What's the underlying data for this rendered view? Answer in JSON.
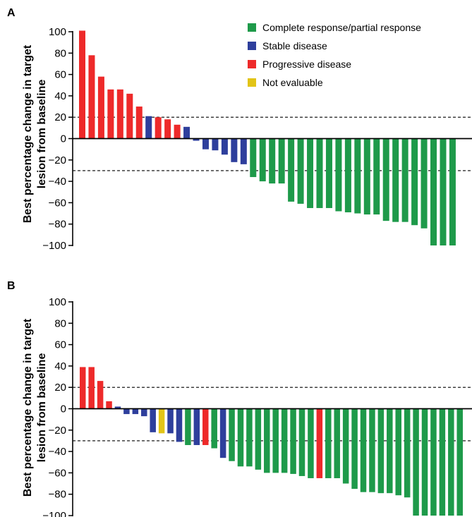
{
  "chart_data": [
    {
      "panel": "A",
      "type": "bar",
      "ylabel_line1": "Best percentage change in target",
      "ylabel_line2": "lesion from baseline",
      "ylim": [
        -100,
        100
      ],
      "yticks": [
        100,
        80,
        60,
        40,
        20,
        0,
        -20,
        -40,
        -60,
        -80,
        -100
      ],
      "reference_lines": [
        20,
        -30
      ],
      "legend": [
        {
          "label": "Complete response/partial response",
          "color": "#1e9a4a"
        },
        {
          "label": "Stable disease",
          "color": "#2e3f9c"
        },
        {
          "label": "Progressive disease",
          "color": "#ee2a2a"
        },
        {
          "label": "Not evaluable",
          "color": "#e2c417"
        }
      ],
      "values": [
        101,
        78,
        58,
        46,
        46,
        42,
        30,
        21,
        20,
        18,
        13,
        11,
        -2,
        -10,
        -11,
        -15,
        -22,
        -24,
        -36,
        -40,
        -42,
        -42,
        -59,
        -61,
        -65,
        -65,
        -65,
        -68,
        -69,
        -70,
        -71,
        -71,
        -77,
        -78,
        -78,
        -81,
        -84,
        -100,
        -100,
        -100
      ],
      "categories": [
        "PD",
        "PD",
        "PD",
        "PD",
        "PD",
        "PD",
        "PD",
        "SD",
        "PD",
        "PD",
        "PD",
        "SD",
        "SD",
        "SD",
        "SD",
        "SD",
        "SD",
        "SD",
        "CR",
        "CR",
        "CR",
        "CR",
        "CR",
        "CR",
        "CR",
        "CR",
        "CR",
        "CR",
        "CR",
        "CR",
        "CR",
        "CR",
        "CR",
        "CR",
        "CR",
        "CR",
        "CR",
        "CR",
        "CR",
        "CR"
      ]
    },
    {
      "panel": "B",
      "type": "bar",
      "ylabel_line1": "Best percentage change in target",
      "ylabel_line2": "lesion from baseline",
      "ylim": [
        -100,
        100
      ],
      "yticks": [
        100,
        80,
        60,
        40,
        20,
        0,
        -20,
        -40,
        -60,
        -80,
        -100
      ],
      "reference_lines": [
        20,
        -30
      ],
      "values": [
        39,
        39,
        26,
        7,
        2,
        -5,
        -5,
        -7,
        -22,
        -23,
        -23,
        -31,
        -34,
        -34,
        -34,
        -37,
        -46,
        -49,
        -54,
        -54,
        -57,
        -60,
        -60,
        -60,
        -61,
        -63,
        -65,
        -65,
        -65,
        -65,
        -70,
        -75,
        -78,
        -78,
        -79,
        -79,
        -81,
        -83,
        -100,
        -100,
        -100,
        -100,
        -100,
        -100
      ],
      "categories": [
        "PD",
        "PD",
        "PD",
        "PD",
        "SD",
        "SD",
        "SD",
        "SD",
        "SD",
        "NE",
        "SD",
        "SD",
        "CR",
        "SD",
        "PD",
        "CR",
        "SD",
        "CR",
        "CR",
        "CR",
        "CR",
        "CR",
        "CR",
        "CR",
        "CR",
        "CR",
        "CR",
        "PD",
        "CR",
        "CR",
        "CR",
        "CR",
        "CR",
        "CR",
        "CR",
        "CR",
        "CR",
        "CR",
        "CR",
        "CR",
        "CR",
        "CR",
        "CR",
        "CR"
      ]
    }
  ],
  "category_colors": {
    "CR": "#1e9a4a",
    "SD": "#2e3f9c",
    "PD": "#ee2a2a",
    "NE": "#e2c417"
  }
}
